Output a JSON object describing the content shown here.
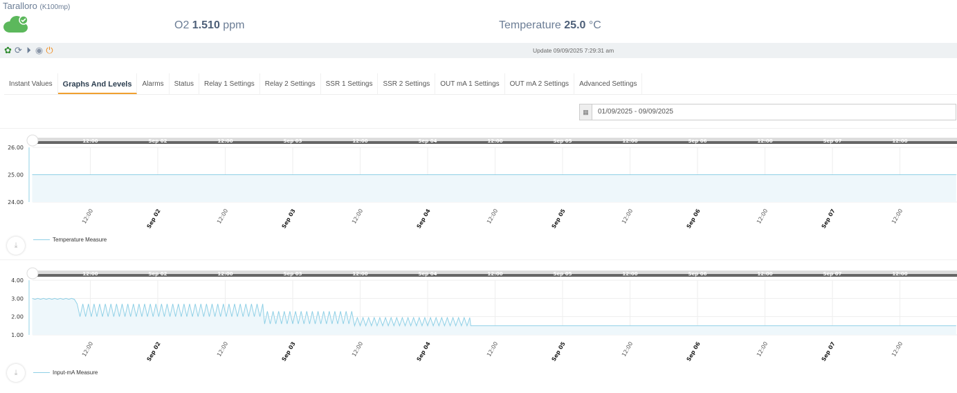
{
  "device": {
    "name": "Taralloro",
    "model": "(K100mp)",
    "status_icon": "cloud-check-icon"
  },
  "readings": [
    {
      "label": "O2",
      "value": "1.510",
      "unit": "ppm"
    },
    {
      "label": "Temperature",
      "value": "25.0",
      "unit": "°C"
    }
  ],
  "toolbar": {
    "icons": [
      "gear-icon",
      "refresh-icon",
      "play-icon",
      "podcast-icon",
      "power-icon"
    ],
    "update": "Update 09/09/2025 7:29:31 am"
  },
  "tabs": [
    "Instant Values",
    "Graphs And Levels",
    "Alarms",
    "Status",
    "Relay 1 Settings",
    "Relay 2 Settings",
    "SSR 1 Settings",
    "SSR 2 Settings",
    "OUT mA 1 Settings",
    "OUT mA 2 Settings",
    "Advanced Settings"
  ],
  "active_tab": 1,
  "date_range": "01/09/2025 - 09/09/2025",
  "colors": {
    "series": "#8fd0e6",
    "fill": "#eef7fb",
    "accent": "#f0a030",
    "cloud": "#5cb85c"
  },
  "chart_data": [
    {
      "type": "area",
      "name": "Temperature Measure",
      "ylim": [
        24,
        26
      ],
      "yticks": [
        "24.00",
        "25.00",
        "26.00"
      ],
      "xticks": [
        "12:00",
        "Sep 02",
        "12:00",
        "Sep 03",
        "12:00",
        "Sep 04",
        "12:00",
        "Sep 05",
        "12:00",
        "Sep 06",
        "12:00",
        "Sep 07",
        "12:00"
      ],
      "x_range": [
        "2025-09-01 01:40",
        "2025-09-07 22:00"
      ],
      "segments": [
        {
          "from": "2025-09-01 01:40",
          "to": "2025-09-07 22:00",
          "min": 25,
          "max": 25
        }
      ]
    },
    {
      "type": "area",
      "name": "Input-mA Measure",
      "ylim": [
        1,
        4
      ],
      "yticks": [
        "1.00",
        "2.00",
        "3.00",
        "4.00"
      ],
      "xticks": [
        "12:00",
        "Sep 02",
        "12:00",
        "Sep 03",
        "12:00",
        "Sep 04",
        "12:00",
        "Sep 05",
        "12:00",
        "Sep 06",
        "12:00",
        "Sep 07",
        "12:00"
      ],
      "x_range": [
        "2025-09-01 01:40",
        "2025-09-07 22:00"
      ],
      "segments": [
        {
          "from": "2025-09-01 01:40",
          "to": "2025-09-01 09:40",
          "min": 2.95,
          "max": 3.0
        },
        {
          "from": "2025-09-01 09:40",
          "to": "2025-09-02 19:00",
          "min": 2.0,
          "max": 2.7
        },
        {
          "from": "2025-09-02 19:00",
          "to": "2025-09-03 11:00",
          "min": 1.6,
          "max": 2.3
        },
        {
          "from": "2025-09-03 11:00",
          "to": "2025-09-04 07:40",
          "min": 1.5,
          "max": 1.95
        },
        {
          "from": "2025-09-04 07:40",
          "to": "2025-09-07 22:00",
          "min": 1.5,
          "max": 1.5
        }
      ]
    }
  ]
}
